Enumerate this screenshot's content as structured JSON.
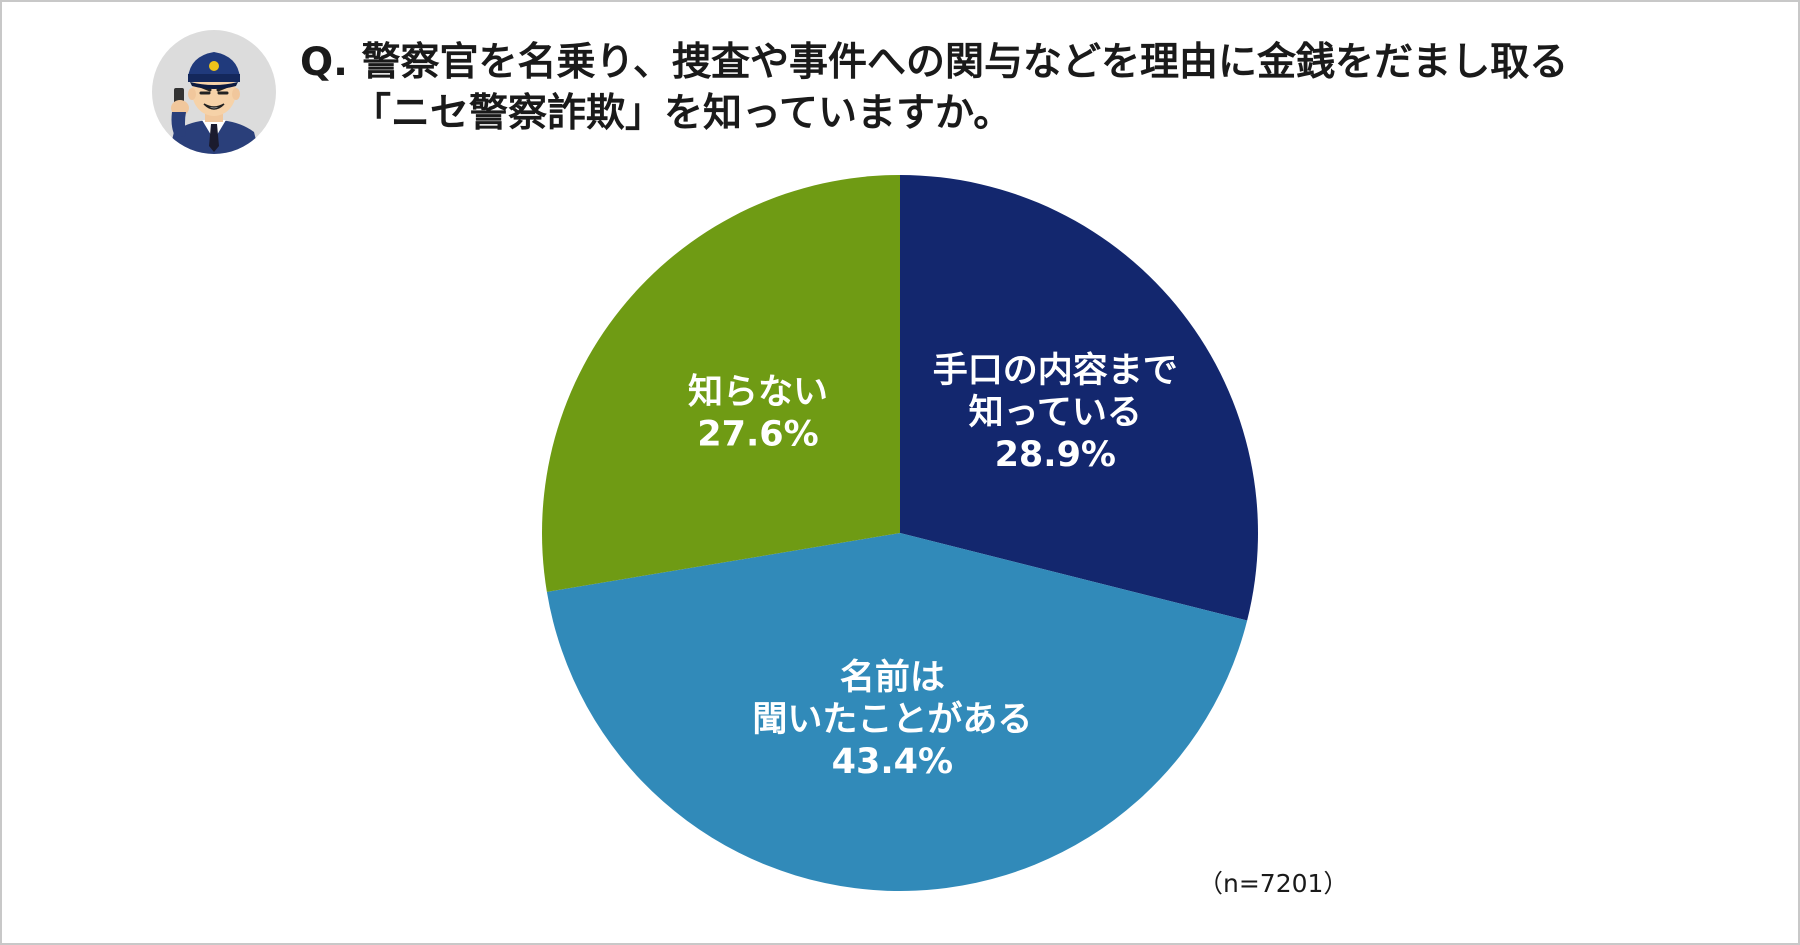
{
  "question": {
    "line1": "Q. 警察官を名乗り、捜査や事件への関与などを理由に金銭をだまし取る",
    "line2": "「ニセ警察詐欺」を知っていますか。"
  },
  "sample_note": "（n=7201）",
  "chart_data": {
    "type": "pie",
    "title": "",
    "start_angle_deg": 0,
    "direction": "clockwise",
    "slices": [
      {
        "label_lines": [
          "手口の内容まで",
          "知っている"
        ],
        "value": 28.9,
        "value_text": "28.9%",
        "color": "#13276e"
      },
      {
        "label_lines": [
          "名前は",
          "聞いたことがある"
        ],
        "value": 43.4,
        "value_text": "43.4%",
        "color": "#318ab9"
      },
      {
        "label_lines": [
          "知らない"
        ],
        "value": 27.6,
        "value_text": "27.6%",
        "color": "#6f9b14"
      }
    ]
  },
  "colors": {
    "text": "#1a1a1a",
    "label": "#ffffff",
    "frame": "#c8c8c8"
  },
  "icons": {
    "avatar": "police-officer-icon"
  }
}
